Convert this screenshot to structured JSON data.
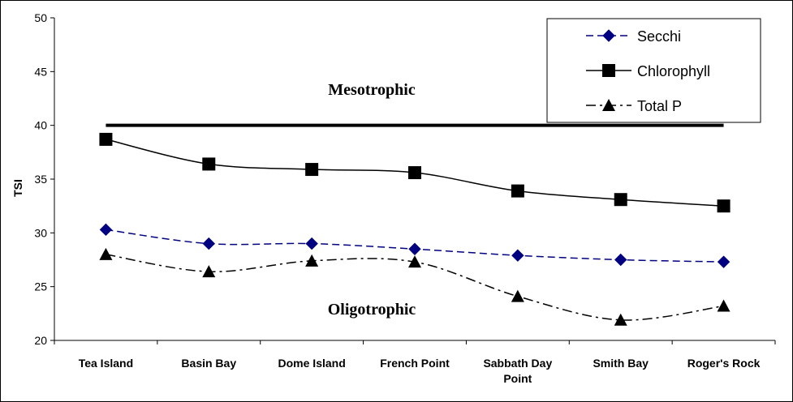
{
  "chart_data": {
    "type": "line",
    "ylabel": "TSI",
    "ylim": [
      20,
      50
    ],
    "yticks": [
      20,
      25,
      30,
      35,
      40,
      45,
      50
    ],
    "categories": [
      [
        "Tea Island"
      ],
      [
        "Basin Bay"
      ],
      [
        "Dome Island"
      ],
      [
        "French Point"
      ],
      [
        "Sabbath Day",
        "Point"
      ],
      [
        "Smith Bay"
      ],
      [
        "Roger's Rock"
      ]
    ],
    "series": [
      {
        "name": "Secchi",
        "values": [
          30.3,
          29.0,
          29.0,
          28.5,
          27.9,
          27.5,
          27.3
        ],
        "color": "#000080",
        "marker": "diamond",
        "dash": "dashed"
      },
      {
        "name": "Chlorophyll",
        "values": [
          38.7,
          36.4,
          35.9,
          35.6,
          33.9,
          33.1,
          32.5
        ],
        "color": "#000000",
        "marker": "square",
        "dash": "solid"
      },
      {
        "name": "Total P",
        "values": [
          28.0,
          26.4,
          27.4,
          27.3,
          24.1,
          21.9,
          23.2
        ],
        "color": "#000000",
        "marker": "triangle",
        "dash": "dashdot"
      }
    ],
    "threshold": {
      "value": 40
    },
    "annotations": [
      "Mesotrophic",
      "Oligotrophic"
    ],
    "grid": false,
    "legend_position": "top-right"
  }
}
